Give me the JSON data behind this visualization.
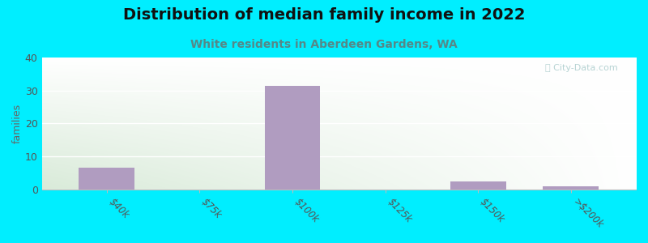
{
  "title": "Distribution of median family income in 2022",
  "subtitle": "White residents in Aberdeen Gardens, WA",
  "categories": [
    "$40k",
    "$75k",
    "$100k",
    "$125k",
    "$150k",
    ">$200k"
  ],
  "values": [
    6.5,
    0,
    31.5,
    0,
    2.5,
    1
  ],
  "bar_color": "#b09cc0",
  "bg_outer": "#00eeff",
  "bg_grad_topleft": "#dff0d8",
  "bg_grad_topright": "#f5f5f5",
  "bg_grad_botleft": "#c8e6c0",
  "bg_grad_botright": "#e8f0e8",
  "ylabel": "families",
  "ylim": [
    0,
    40
  ],
  "yticks": [
    0,
    10,
    20,
    30,
    40
  ],
  "title_fontsize": 14,
  "subtitle_fontsize": 10,
  "subtitle_color": "#558888",
  "watermark": "ⓘ City-Data.com",
  "watermark_color": "#aacccc"
}
